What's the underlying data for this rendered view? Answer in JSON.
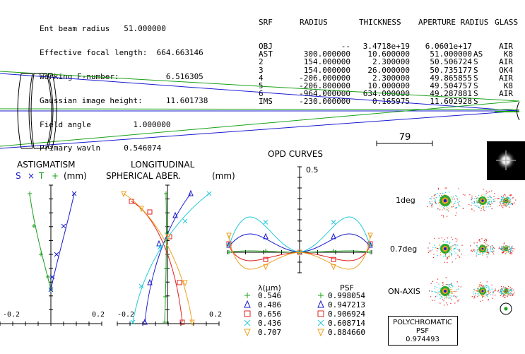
{
  "params": [
    {
      "label": "Ent beam radius",
      "value": "51.000000"
    },
    {
      "label": "Effective focal length:",
      "value": "664.663146"
    },
    {
      "label": "Working F-number:",
      "value": "6.516305"
    },
    {
      "label": "Gaussian image height:",
      "value": "11.601738"
    },
    {
      "label": "Field angle",
      "value": "1.000000"
    },
    {
      "label": "Primary wavln",
      "value": "0.546074"
    }
  ],
  "table": {
    "headers": [
      "SRF",
      "RADIUS",
      "THICKNESS",
      "APERTURE RADIUS",
      "GLASS"
    ],
    "rows": [
      {
        "srf": "OBJ",
        "radius": "--",
        "thickness": "3.4718e+19",
        "aperture": "6.0601e+17",
        "flag": "",
        "glass": "AIR"
      },
      {
        "srf": "AST",
        "radius": "300.000000",
        "thickness": "10.600000",
        "aperture": "51.000000",
        "flag": "AS",
        "glass": "K8"
      },
      {
        "srf": "2",
        "radius": "154.000000",
        "thickness": "2.300000",
        "aperture": "50.506724",
        "flag": "S",
        "glass": "AIR"
      },
      {
        "srf": "3",
        "radius": "154.000000",
        "thickness": "26.000000",
        "aperture": "50.735177",
        "flag": "S",
        "glass": "OK4"
      },
      {
        "srf": "4",
        "radius": "-206.000000",
        "thickness": "2.300000",
        "aperture": "49.865855",
        "flag": "S",
        "glass": "AIR"
      },
      {
        "srf": "5",
        "radius": "-206.800000",
        "thickness": "10.000000",
        "aperture": "49.504757",
        "flag": "S",
        "glass": "K8"
      },
      {
        "srf": "6",
        "radius": "-964.000000",
        "thickness": "634.000000",
        "aperture": "49.287881",
        "flag": "S",
        "glass": "AIR"
      },
      {
        "srf": "IMS",
        "radius": "-230.000000",
        "thickness": "0.165975",
        "aperture": "11.602928",
        "flag": "S",
        "glass": ""
      }
    ]
  },
  "scale_bar": "79",
  "astig": {
    "title": "ASTIGMATISM",
    "s": "S",
    "x": "×",
    "t": "T",
    "plus": "+",
    "units": "(mm)",
    "min": "-0.2",
    "max": "0.2"
  },
  "lsa": {
    "title1": "LONGITUDINAL",
    "title2": "SPHERICAL ABER.",
    "units": "(mm)",
    "min": "-0.2",
    "max": "0.2"
  },
  "opd": {
    "title": "OPD CURVES",
    "scale": "0.5"
  },
  "legend": {
    "lambda_header": "λ(μm)",
    "psf_header": "PSF",
    "entries": [
      {
        "wl": "0.546",
        "psf": "0.998054",
        "color": "#1aa01a",
        "marker": "+"
      },
      {
        "wl": "0.486",
        "psf": "0.947213",
        "color": "#1a1ad0",
        "marker": "triangle"
      },
      {
        "wl": "0.656",
        "psf": "0.906924",
        "color": "#e02020",
        "marker": "square"
      },
      {
        "wl": "0.436",
        "psf": "0.608714",
        "color": "#20c8d8",
        "marker": "x"
      },
      {
        "wl": "0.707",
        "psf": "0.884660",
        "color": "#f0a020",
        "marker": "triangle-down"
      }
    ]
  },
  "spot": {
    "labels": [
      "1deg",
      "0.7deg",
      "ON-AXIS"
    ]
  },
  "poly": {
    "line1": "POLYCHROMATIC",
    "line2": "PSF",
    "value": "0.974493"
  }
}
